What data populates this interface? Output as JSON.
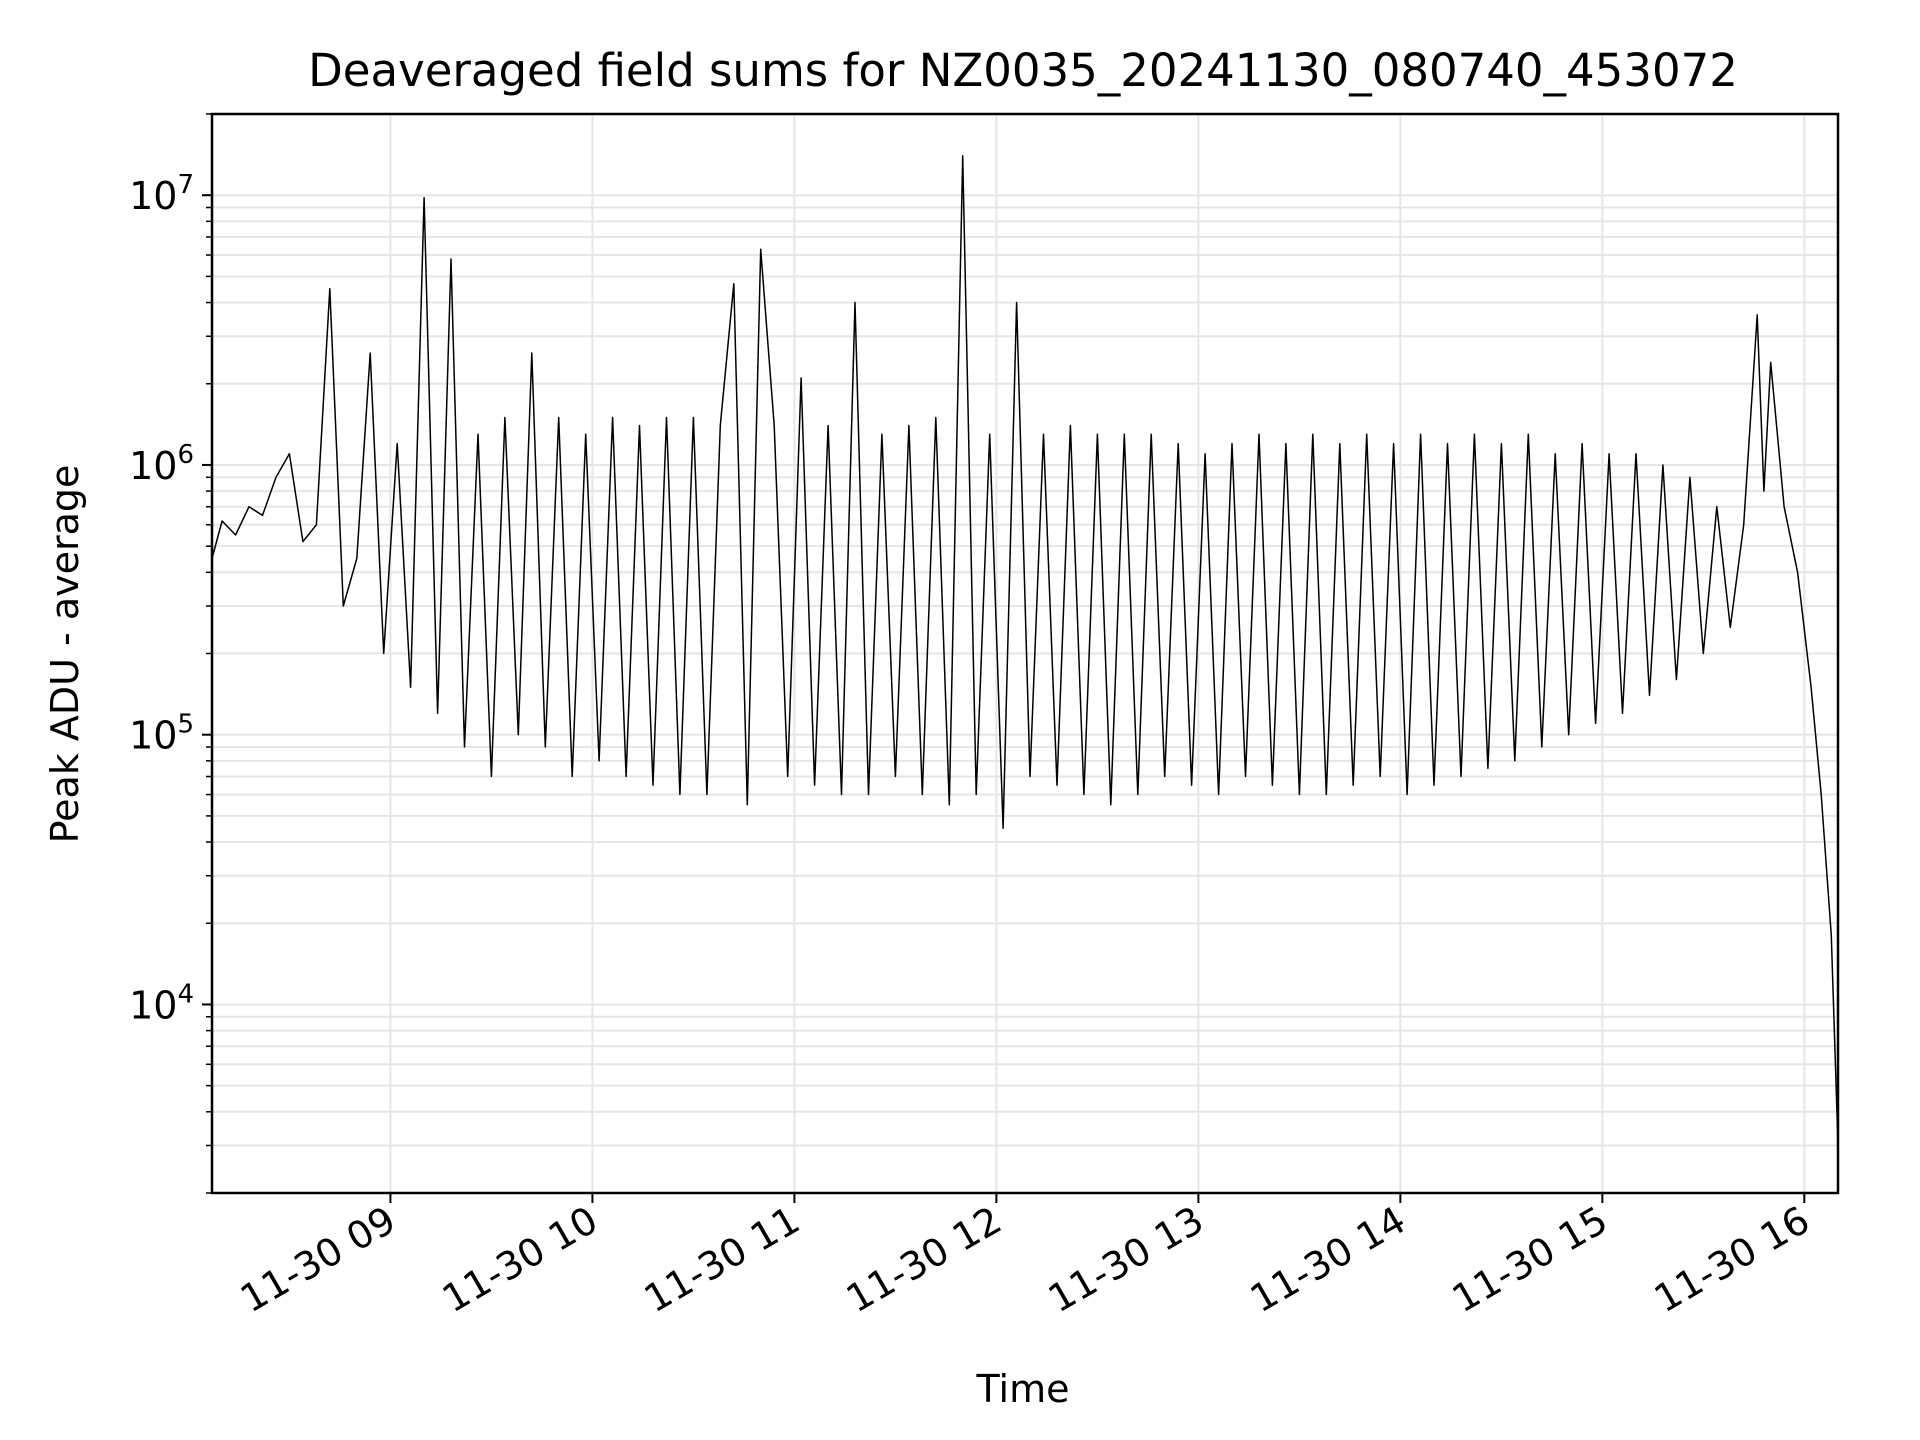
{
  "chart_data": {
    "type": "line",
    "title": "Deaveraged field sums for NZ0035_20241130_080740_453072",
    "xlabel": "Time",
    "ylabel": "Peak ADU - average",
    "yscale": "log",
    "ylim": [
      2000,
      20000000
    ],
    "xlim": [
      "2024-11-30 08:07",
      "2024-11-30 16:10"
    ],
    "grid": true,
    "line_color": "#000000",
    "grid_color": "#e6e6e6",
    "x_ticks": [
      {
        "label": "11-30 09",
        "value": "2024-11-30 09:00"
      },
      {
        "label": "11-30 10",
        "value": "2024-11-30 10:00"
      },
      {
        "label": "11-30 11",
        "value": "2024-11-30 11:00"
      },
      {
        "label": "11-30 12",
        "value": "2024-11-30 12:00"
      },
      {
        "label": "11-30 13",
        "value": "2024-11-30 13:00"
      },
      {
        "label": "11-30 14",
        "value": "2024-11-30 14:00"
      },
      {
        "label": "11-30 15",
        "value": "2024-11-30 15:00"
      },
      {
        "label": "11-30 16",
        "value": "2024-11-30 16:00"
      }
    ],
    "y_ticks": [
      {
        "base": "10",
        "exp": "4",
        "value": 10000
      },
      {
        "base": "10",
        "exp": "5",
        "value": 100000
      },
      {
        "base": "10",
        "exp": "6",
        "value": 1000000
      },
      {
        "base": "10",
        "exp": "7",
        "value": 10000000
      }
    ],
    "series": [
      {
        "x": [
          "2024-11-30 08:07",
          "2024-11-30 08:10",
          "2024-11-30 08:14",
          "2024-11-30 08:18",
          "2024-11-30 08:22",
          "2024-11-30 08:26",
          "2024-11-30 08:30",
          "2024-11-30 08:34",
          "2024-11-30 08:38",
          "2024-11-30 08:42",
          "2024-11-30 08:46",
          "2024-11-30 08:50",
          "2024-11-30 08:54",
          "2024-11-30 08:58",
          "2024-11-30 09:02",
          "2024-11-30 09:06",
          "2024-11-30 09:10",
          "2024-11-30 09:14",
          "2024-11-30 09:18",
          "2024-11-30 09:22",
          "2024-11-30 09:26",
          "2024-11-30 09:30",
          "2024-11-30 09:34",
          "2024-11-30 09:38",
          "2024-11-30 09:42",
          "2024-11-30 09:46",
          "2024-11-30 09:50",
          "2024-11-30 09:54",
          "2024-11-30 09:58",
          "2024-11-30 10:02",
          "2024-11-30 10:06",
          "2024-11-30 10:10",
          "2024-11-30 10:14",
          "2024-11-30 10:18",
          "2024-11-30 10:22",
          "2024-11-30 10:26",
          "2024-11-30 10:30",
          "2024-11-30 10:34",
          "2024-11-30 10:38",
          "2024-11-30 10:42",
          "2024-11-30 10:46",
          "2024-11-30 10:50",
          "2024-11-30 10:54",
          "2024-11-30 10:58",
          "2024-11-30 11:02",
          "2024-11-30 11:06",
          "2024-11-30 11:10",
          "2024-11-30 11:14",
          "2024-11-30 11:18",
          "2024-11-30 11:22",
          "2024-11-30 11:26",
          "2024-11-30 11:30",
          "2024-11-30 11:34",
          "2024-11-30 11:38",
          "2024-11-30 11:42",
          "2024-11-30 11:46",
          "2024-11-30 11:50",
          "2024-11-30 11:54",
          "2024-11-30 11:58",
          "2024-11-30 12:02",
          "2024-11-30 12:06",
          "2024-11-30 12:10",
          "2024-11-30 12:14",
          "2024-11-30 12:18",
          "2024-11-30 12:22",
          "2024-11-30 12:26",
          "2024-11-30 12:30",
          "2024-11-30 12:34",
          "2024-11-30 12:38",
          "2024-11-30 12:42",
          "2024-11-30 12:46",
          "2024-11-30 12:50",
          "2024-11-30 12:54",
          "2024-11-30 12:58",
          "2024-11-30 13:02",
          "2024-11-30 13:06",
          "2024-11-30 13:10",
          "2024-11-30 13:14",
          "2024-11-30 13:18",
          "2024-11-30 13:22",
          "2024-11-30 13:26",
          "2024-11-30 13:30",
          "2024-11-30 13:34",
          "2024-11-30 13:38",
          "2024-11-30 13:42",
          "2024-11-30 13:46",
          "2024-11-30 13:50",
          "2024-11-30 13:54",
          "2024-11-30 13:58",
          "2024-11-30 14:02",
          "2024-11-30 14:06",
          "2024-11-30 14:10",
          "2024-11-30 14:14",
          "2024-11-30 14:18",
          "2024-11-30 14:22",
          "2024-11-30 14:26",
          "2024-11-30 14:30",
          "2024-11-30 14:34",
          "2024-11-30 14:38",
          "2024-11-30 14:42",
          "2024-11-30 14:46",
          "2024-11-30 14:50",
          "2024-11-30 14:54",
          "2024-11-30 14:58",
          "2024-11-30 15:02",
          "2024-11-30 15:06",
          "2024-11-30 15:10",
          "2024-11-30 15:14",
          "2024-11-30 15:18",
          "2024-11-30 15:22",
          "2024-11-30 15:26",
          "2024-11-30 15:30",
          "2024-11-30 15:34",
          "2024-11-30 15:38",
          "2024-11-30 15:42",
          "2024-11-30 15:46",
          "2024-11-30 15:48",
          "2024-11-30 15:50",
          "2024-11-30 15:54",
          "2024-11-30 15:58",
          "2024-11-30 16:02",
          "2024-11-30 16:05",
          "2024-11-30 16:08",
          "2024-11-30 16:10"
        ],
        "y": [
          450000,
          620000,
          550000,
          700000,
          650000,
          900000,
          1100000,
          520000,
          600000,
          4500000,
          300000,
          450000,
          2600000,
          200000,
          1200000,
          150000,
          9800000,
          120000,
          5800000,
          90000,
          1300000,
          70000,
          1500000,
          100000,
          2600000,
          90000,
          1500000,
          70000,
          1300000,
          80000,
          1500000,
          70000,
          1400000,
          65000,
          1500000,
          60000,
          1500000,
          60000,
          1400000,
          4700000,
          55000,
          6300000,
          1400000,
          70000,
          2100000,
          65000,
          1400000,
          60000,
          4000000,
          60000,
          1300000,
          70000,
          1400000,
          60000,
          1500000,
          55000,
          14000000,
          60000,
          1300000,
          45000,
          4000000,
          70000,
          1300000,
          65000,
          1400000,
          60000,
          1300000,
          55000,
          1300000,
          60000,
          1300000,
          70000,
          1200000,
          65000,
          1100000,
          60000,
          1200000,
          70000,
          1300000,
          65000,
          1200000,
          60000,
          1300000,
          60000,
          1200000,
          65000,
          1300000,
          70000,
          1200000,
          60000,
          1300000,
          65000,
          1200000,
          70000,
          1300000,
          75000,
          1200000,
          80000,
          1300000,
          90000,
          1100000,
          100000,
          1200000,
          110000,
          1100000,
          120000,
          1100000,
          140000,
          1000000,
          160000,
          900000,
          200000,
          700000,
          250000,
          600000,
          3600000,
          800000,
          2400000,
          700000,
          400000,
          150000,
          60000,
          18000,
          3000
        ]
      }
    ]
  }
}
